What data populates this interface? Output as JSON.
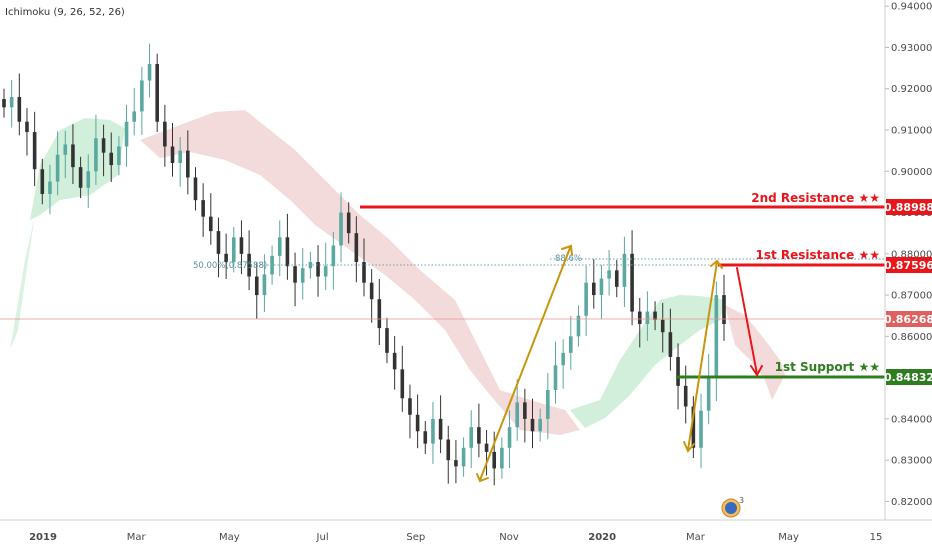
{
  "indicator_label": "Ichimoku (9, 26, 52, 26)",
  "colors": {
    "up": "#5aa8a0",
    "down": "#333333",
    "resistance": "#e8161b",
    "support": "#2e7d1e",
    "arrow_gold": "#c8960c",
    "cloud_bull": "#c9ecd5",
    "cloud_bear": "#f3d7d7",
    "current_price_line": "#e89090",
    "fib_line": "#6aa0b0"
  },
  "chart_data": {
    "type": "candlestick",
    "title": "",
    "x_ticks": [
      "2019",
      "Mar",
      "May",
      "Jul",
      "Sep",
      "Nov",
      "2020",
      "Mar",
      "May",
      "15"
    ],
    "y_ticks": [
      "0.94000",
      "0.93000",
      "0.92000",
      "0.91000",
      "0.90000",
      "0.89000",
      "0.88000",
      "0.87000",
      "0.86000",
      "0.85000",
      "0.84000",
      "0.83000",
      "0.82000"
    ],
    "ylim": [
      0.8155,
      0.9415
    ],
    "grid": false,
    "close_series": [
      0.9155,
      0.918,
      0.912,
      0.9095,
      0.9005,
      0.8945,
      0.8975,
      0.904,
      0.9065,
      0.901,
      0.896,
      0.9,
      0.908,
      0.9045,
      0.9015,
      0.906,
      0.912,
      0.9145,
      0.922,
      0.926,
      0.912,
      0.906,
      0.902,
      0.905,
      0.8985,
      0.893,
      0.889,
      0.8855,
      0.88,
      0.878,
      0.884,
      0.88,
      0.8745,
      0.87,
      0.875,
      0.8795,
      0.884,
      0.877,
      0.873,
      0.8765,
      0.878,
      0.8745,
      0.877,
      0.882,
      0.89,
      0.885,
      0.878,
      0.873,
      0.869,
      0.862,
      0.856,
      0.852,
      0.845,
      0.841,
      0.837,
      0.834,
      0.84,
      0.835,
      0.83,
      0.8285,
      0.833,
      0.838,
      0.834,
      0.832,
      0.828,
      0.833,
      0.838,
      0.844,
      0.84,
      0.837,
      0.84,
      0.847,
      0.853,
      0.856,
      0.86,
      0.865,
      0.873,
      0.87,
      0.874,
      0.876,
      0.872,
      0.88,
      0.866,
      0.863,
      0.866,
      0.864,
      0.861,
      0.855,
      0.848,
      0.843,
      0.833,
      0.842,
      0.85,
      0.87,
      0.863
    ],
    "current_price": 0.86268
  },
  "levels": [
    {
      "name": "2nd Resistance ★★",
      "price": "0.88988"
    },
    {
      "name": "1st Resistance ★★",
      "price": "0.87596"
    },
    {
      "name": "1st Support ★★",
      "price": "0.84832"
    }
  ],
  "current_price_tag": "0.86268",
  "fib": {
    "label": "50.00%(0.87588)",
    "label2": "88.6%"
  },
  "badge": {
    "number": "3"
  }
}
